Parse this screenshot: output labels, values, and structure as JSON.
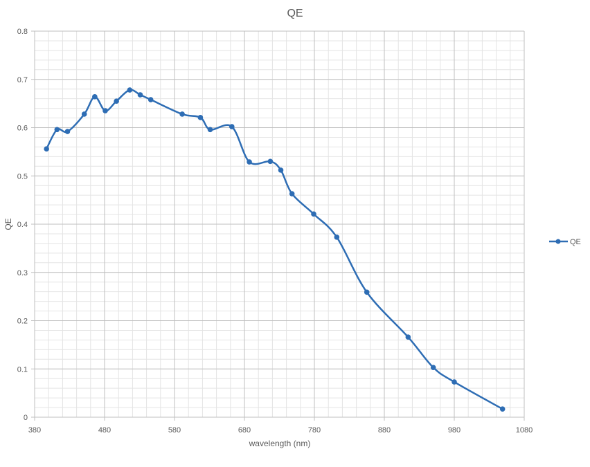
{
  "chart_data": {
    "type": "line",
    "title": "QE",
    "xlabel": "wavelength (nm)",
    "ylabel": "QE",
    "xlim": [
      380,
      1080
    ],
    "ylim": [
      0,
      0.8
    ],
    "xticks": [
      380,
      480,
      580,
      680,
      780,
      880,
      980,
      1080
    ],
    "yticks": [
      0,
      0.1,
      0.2,
      0.3,
      0.4,
      0.5,
      0.6,
      0.7,
      0.8
    ],
    "grid": true,
    "smoothed": true,
    "legend_position": "right",
    "series": [
      {
        "name": "QE",
        "color": "#2e6db4",
        "x": [
          397,
          412,
          427,
          451,
          466,
          481,
          497,
          516,
          531,
          546,
          591,
          617,
          631,
          662,
          687,
          717,
          732,
          748,
          779,
          812,
          855,
          914,
          950,
          980,
          1049
        ],
        "y": [
          0.556,
          0.596,
          0.592,
          0.628,
          0.664,
          0.635,
          0.655,
          0.678,
          0.668,
          0.658,
          0.628,
          0.621,
          0.596,
          0.602,
          0.529,
          0.53,
          0.512,
          0.463,
          0.421,
          0.373,
          0.259,
          0.166,
          0.103,
          0.073,
          0.017
        ]
      }
    ]
  }
}
